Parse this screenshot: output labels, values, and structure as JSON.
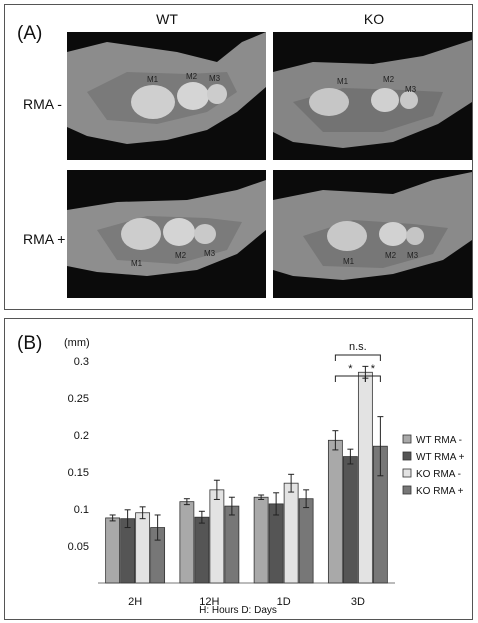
{
  "panel_a": {
    "label": "(A)",
    "columns": [
      "WT",
      "KO"
    ],
    "rows": [
      "RMA -",
      "RMA +"
    ],
    "molar_labels": [
      "M1",
      "M2",
      "M3"
    ]
  },
  "panel_b": {
    "label": "(B)",
    "footnote": "H: Hours   D: Days"
  },
  "chart_data": {
    "type": "bar",
    "title": "",
    "ylabel": "(mm)",
    "xlabel": "",
    "ylim": [
      0,
      0.33
    ],
    "yticks": [
      "0.05",
      "0.1",
      "0.15",
      "0.2",
      "0.25",
      "0.3"
    ],
    "ytick_values": [
      0.05,
      0.1,
      0.15,
      0.2,
      0.25,
      0.3
    ],
    "categories": [
      "2H",
      "12H",
      "1D",
      "3D"
    ],
    "series": [
      {
        "name": "WT RMA -",
        "values": [
          0.088,
          0.11,
          0.116,
          0.193
        ],
        "errors": [
          0.004,
          0.004,
          0.003,
          0.013
        ],
        "color": "#a9a9a9"
      },
      {
        "name": "WT RMA +",
        "values": [
          0.087,
          0.089,
          0.107,
          0.171
        ],
        "errors": [
          0.012,
          0.008,
          0.015,
          0.01
        ],
        "color": "#555555"
      },
      {
        "name": "KO RMA -",
        "values": [
          0.095,
          0.126,
          0.135,
          0.285
        ],
        "errors": [
          0.008,
          0.013,
          0.012,
          0.008
        ],
        "color": "#e3e3e3"
      },
      {
        "name": "KO RMA +",
        "values": [
          0.075,
          0.104,
          0.114,
          0.185
        ],
        "errors": [
          0.017,
          0.012,
          0.012,
          0.04
        ],
        "color": "#777777"
      }
    ],
    "annotations": [
      "n.s.",
      "*",
      "*"
    ],
    "legend_position": "right"
  }
}
